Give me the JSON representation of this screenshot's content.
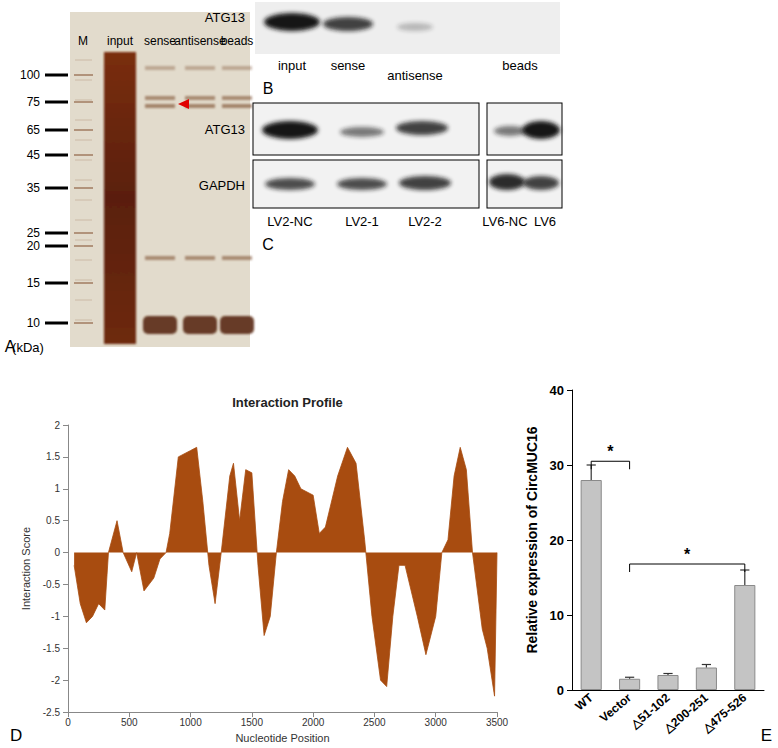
{
  "panels": {
    "A": {
      "label": "A",
      "lanes": [
        "M",
        "input",
        "sense",
        "antisense",
        "beads"
      ],
      "markers": [
        100,
        75,
        65,
        45,
        35,
        25,
        20,
        15,
        10
      ],
      "unit": "(kDa)"
    },
    "B": {
      "label": "B",
      "protein": "ATG13",
      "lanes": [
        "input",
        "sense",
        "antisense",
        "beads"
      ]
    },
    "C": {
      "label": "C",
      "rows": [
        "ATG13",
        "GAPDH"
      ],
      "lanes": [
        "LV2-NC",
        "LV2-1",
        "LV2-2",
        "LV6-NC",
        "LV6"
      ]
    }
  },
  "chart_data": [
    {
      "type": "area",
      "title": "Interaction Profile",
      "x_label": "Nucleotide Position",
      "y_label": "Interaction Score",
      "x": [
        50,
        100,
        150,
        200,
        250,
        300,
        330,
        400,
        450,
        520,
        560,
        620,
        700,
        750,
        800,
        830,
        900,
        1000,
        1050,
        1100,
        1150,
        1200,
        1250,
        1320,
        1350,
        1400,
        1450,
        1500,
        1550,
        1600,
        1650,
        1700,
        1750,
        1800,
        1850,
        1900,
        2000,
        2050,
        2100,
        2200,
        2280,
        2350,
        2420,
        2480,
        2550,
        2600,
        2650,
        2700,
        2750,
        2850,
        2920,
        3000,
        3050,
        3100,
        3150,
        3200,
        3250,
        3300,
        3380,
        3420,
        3480,
        3500
      ],
      "values": [
        -0.2,
        -0.8,
        -1.1,
        -1.0,
        -0.8,
        -0.9,
        0,
        0.5,
        0,
        -0.3,
        0,
        -0.6,
        -0.4,
        -0.1,
        0,
        0.3,
        1.5,
        1.6,
        1.65,
        0.8,
        -0.2,
        -0.8,
        0,
        1.2,
        1.4,
        0.5,
        1.3,
        1.25,
        -0.2,
        -1.3,
        -1.0,
        0,
        0.8,
        1.3,
        1.2,
        1.0,
        0.9,
        0.3,
        0.4,
        1.2,
        1.65,
        1.4,
        0.2,
        -1.0,
        -2.0,
        -2.1,
        -1.0,
        -0.2,
        -0.2,
        -1.0,
        -1.6,
        -1.0,
        0,
        0.2,
        1.2,
        1.65,
        1.3,
        0,
        -1.2,
        -1.5,
        -2.25,
        0
      ],
      "color": "#a84c10",
      "xlim": [
        0,
        3500
      ],
      "xticks": [
        0,
        500,
        1000,
        1500,
        2000,
        2500,
        3000,
        3500
      ],
      "ylim": [
        -2.5,
        2
      ],
      "yticks": [
        -2.5,
        -2,
        -1.5,
        -1,
        -0.5,
        0,
        0.5,
        1,
        1.5,
        2
      ],
      "grid": false,
      "annotations": [
        "D"
      ]
    },
    {
      "type": "bar",
      "y_label": "Relative expression of CircMUC16",
      "categories": [
        "WT",
        "Vector",
        "△51-102",
        "△200-251",
        "△475-526"
      ],
      "values": [
        28,
        1.5,
        2,
        3,
        14
      ],
      "errors": [
        2,
        0.2,
        0.2,
        0.4,
        2
      ],
      "color": "#c4c4c4",
      "ylim": [
        0,
        40
      ],
      "yticks": [
        0,
        10,
        20,
        30,
        40
      ],
      "significance": [
        {
          "from": "WT",
          "to": "Vector",
          "y": 30.5,
          "label": "*"
        },
        {
          "from": "Vector",
          "to": "△475-526",
          "y": 16.8,
          "label": "*"
        }
      ],
      "grid": false,
      "annotations": [
        "E"
      ]
    }
  ]
}
